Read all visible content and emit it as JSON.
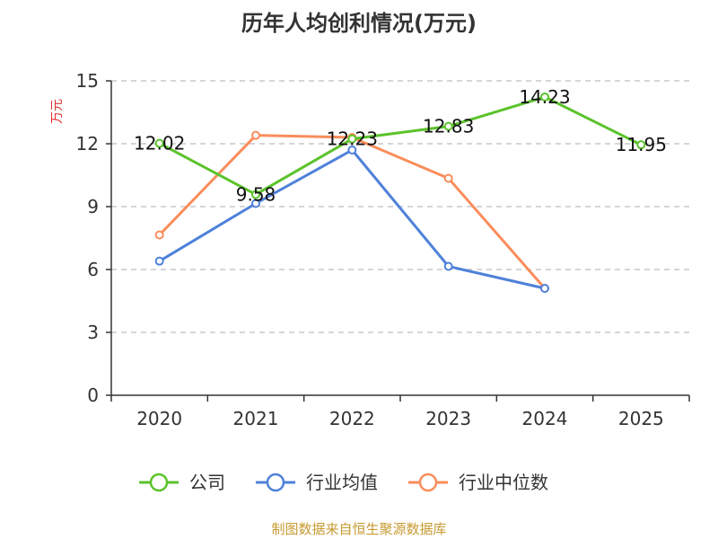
{
  "chart_data": {
    "type": "line",
    "title": "历年人均创利情况(万元)",
    "ylabel": "万元",
    "xlabel": "",
    "categories": [
      "2020",
      "2021",
      "2022",
      "2023",
      "2024",
      "2025"
    ],
    "ylim": [
      0,
      15
    ],
    "yticks": [
      0,
      3,
      6,
      9,
      12,
      15
    ],
    "grid": true,
    "legend_position": "bottom",
    "series": [
      {
        "name": "公司",
        "color": "#5bc32b",
        "values": [
          12.02,
          9.58,
          12.23,
          12.83,
          14.23,
          11.95
        ],
        "labels": [
          "12.02",
          "9.58",
          "12.23",
          "12.83",
          "14.23",
          "11.95"
        ]
      },
      {
        "name": "行业均值",
        "color": "#4f81d9",
        "values": [
          6.4,
          9.15,
          11.7,
          6.15,
          5.1,
          null
        ]
      },
      {
        "name": "行业中位数",
        "color": "#f98d5b",
        "values": [
          7.65,
          12.4,
          12.3,
          10.35,
          5.1,
          null
        ]
      }
    ]
  },
  "footer": {
    "text": "制图数据来自恒生聚源数据库",
    "color": "#c79a32"
  },
  "unit_color": "#e03030"
}
